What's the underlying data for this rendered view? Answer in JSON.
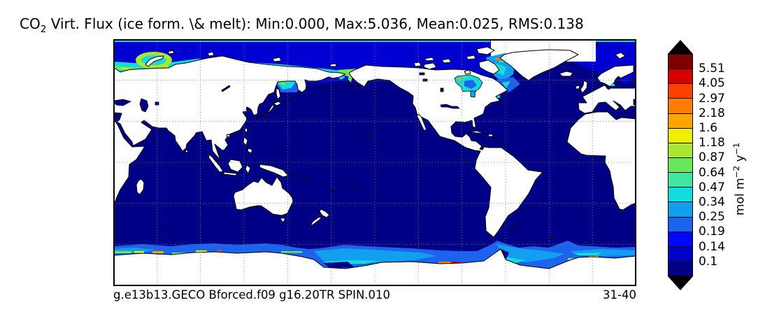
{
  "title": {
    "prefix": "CO",
    "subscript": "2",
    "rest": " Virt. Flux (ice form. \\& melt): Min:0.000, Max:5.036, Mean:0.025, RMS:0.138"
  },
  "caption": {
    "case_name": "g.e13b13.GECO Bforced.f09 g16.20TR SPIN.010",
    "time_range": "31-40"
  },
  "colorbar": {
    "labels_top_to_bottom": [
      "5.51",
      "4.05",
      "2.97",
      "2.18",
      "1.6",
      "1.18",
      "0.87",
      "0.64",
      "0.47",
      "0.34",
      "0.25",
      "0.19",
      "0.14",
      "0.1"
    ],
    "colors_top_to_bottom": [
      "#7f0000",
      "#d40000",
      "#ff4000",
      "#ff7d00",
      "#ffa500",
      "#efef00",
      "#aae632",
      "#66e85a",
      "#3fe8a2",
      "#13dcdc",
      "#129ff0",
      "#1c64ee",
      "#0008f8",
      "#0000c8",
      "#000086"
    ],
    "unit": {
      "base1": "mol m",
      "sup1": "−2",
      "base2": " y",
      "sup2": "−1"
    }
  },
  "chart_data": {
    "type": "heatmap",
    "title": "CO2 Virt. Flux (ice form. \\& melt)",
    "stats": {
      "min": 0.0,
      "max": 5.036,
      "mean": 0.025,
      "rms": 0.138
    },
    "units": "mol m-2 y-1",
    "case": "g.e13b13.GECO Bforced.f09 g16.20TR SPIN.010",
    "time_range": "31-40",
    "projection": "global equirectangular, Pacific-centered (30E to 390E), 90N to 90S, dotted graticule every 30 degrees",
    "colorbar_levels_low_to_high": [
      0.1,
      0.14,
      0.19,
      0.25,
      0.34,
      0.47,
      0.64,
      0.87,
      1.18,
      1.6,
      2.18,
      2.97,
      4.05,
      5.51
    ],
    "colorbar_colors_low_to_high": [
      "#000086",
      "#0000c8",
      "#0008f8",
      "#1c64ee",
      "#129ff0",
      "#13dcdc",
      "#3fe8a2",
      "#66e85a",
      "#aae632",
      "#efef00",
      "#ffa500",
      "#ff7d00",
      "#ff4000",
      "#d40000",
      "#7f0000"
    ],
    "field_description_visible": "Flux is near zero (dark navy, <0.1) over most of the open ocean; elevated values (blues, cyans, greens, yellows, oranges, reds) form bands along Arctic coasts, in Hudson Bay, Baffin Bay, Sea of Okhotsk, the Greenland Sea, and in a circumpolar band around Antarctica; land is masked white"
  }
}
